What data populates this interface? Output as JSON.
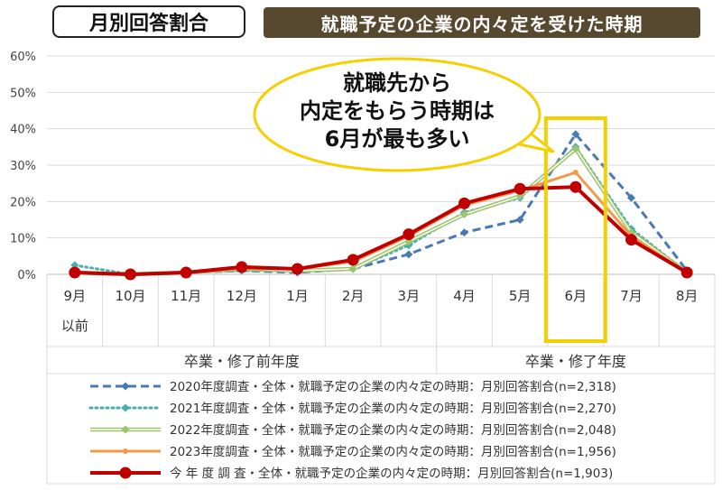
{
  "header": {
    "left_badge": "月別回答割合",
    "right_title": "就職予定の企業の内々定を受けた時期"
  },
  "callout": {
    "lines": [
      "就職先から",
      "内定をもらう時期は",
      "6月が最も多い"
    ]
  },
  "colors": {
    "s2020": "#4a7ab5",
    "s2021": "#45afb0",
    "s2022": "#9cc46a",
    "s2023": "#f39a4a",
    "current": "#c00000",
    "highlight": "#f5d000",
    "callout_border": "#f5d000"
  },
  "chart_data": {
    "type": "line",
    "title": "",
    "xlabel": "",
    "ylabel": "",
    "ylim": [
      0,
      60
    ],
    "yticks": [
      "0%",
      "10%",
      "20%",
      "30%",
      "40%",
      "50%",
      "60%"
    ],
    "categories": [
      "9月",
      "10月",
      "11月",
      "12月",
      "1月",
      "2月",
      "3月",
      "4月",
      "5月",
      "6月",
      "7月",
      "8月"
    ],
    "category_sublabel": {
      "9月": "以前"
    },
    "groups": [
      {
        "label": "卒業・修了前年度",
        "from": 0,
        "to": 6
      },
      {
        "label": "卒業・修了年度",
        "from": 7,
        "to": 11
      }
    ],
    "highlight_category": "6月",
    "grid": true,
    "legend_position": "bottom",
    "series": [
      {
        "name": "2020年度調査・全体・就職予定の企業の内々定の時期：月別回答割合(n=2,318)",
        "color_key": "s2020",
        "style": "dashed",
        "marker": "diamond",
        "values": [
          0.5,
          0,
          0.5,
          1,
          0.5,
          1.5,
          5.5,
          11.5,
          15,
          38.5,
          21,
          1
        ]
      },
      {
        "name": "2021年度調査・全体・就職予定の企業の内々定の時期：月別回答割合(n=2,270)",
        "color_key": "s2021",
        "style": "dotted",
        "marker": "diamond",
        "values": [
          2.5,
          0,
          0.5,
          1,
          1,
          1.5,
          8,
          17,
          21,
          35,
          12.5,
          0.5
        ]
      },
      {
        "name": "2022年度調査・全体・就職予定の企業の内々定の時期：月別回答割合(n=2,048)",
        "color_key": "s2022",
        "style": "double",
        "marker": "diamond",
        "values": [
          0.5,
          0,
          0.5,
          1.5,
          1,
          1.5,
          9,
          16.5,
          21.5,
          34.5,
          11.5,
          0.5
        ]
      },
      {
        "name": "2023年度調査・全体・就職予定の企業の内々定の時期：月別回答割合(n=1,956)",
        "color_key": "s2023",
        "style": "solid",
        "marker": "small",
        "values": [
          0.5,
          0,
          0.5,
          1.5,
          1.5,
          3.5,
          10.5,
          19,
          23,
          28,
          10.5,
          0.5
        ]
      },
      {
        "name": "今 年 度 調 査・全体・就職予定の企業の内々定の時期：月別回答割合(n=1,903)",
        "color_key": "current",
        "style": "thick",
        "marker": "circle",
        "values": [
          0.5,
          0,
          0.5,
          2,
          1.5,
          4,
          11,
          19.5,
          23.5,
          24,
          9.5,
          0.5
        ]
      }
    ]
  }
}
